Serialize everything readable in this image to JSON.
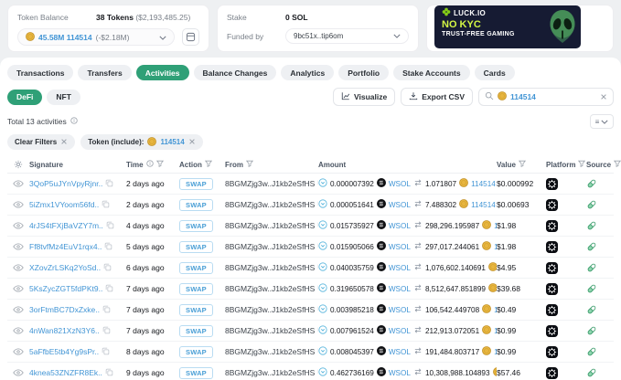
{
  "account": {
    "token_balance_label": "Token Balance",
    "token_count": "38 Tokens",
    "token_total": "($2,193,485.25)",
    "token_select_value": "45.58M 114514",
    "token_select_change": "(-$2.18M)",
    "stake_label": "Stake",
    "stake_value": "0 SOL",
    "funded_by_label": "Funded by",
    "funded_by_value": "9bc51x..tip6om"
  },
  "ad": {
    "brand": "LUCK.IO",
    "headline": "NO KYC",
    "subline": "TRUST-FREE GAMING"
  },
  "tabs": [
    {
      "label": "Transactions"
    },
    {
      "label": "Transfers"
    },
    {
      "label": "Activities",
      "active": true
    },
    {
      "label": "Balance Changes"
    },
    {
      "label": "Analytics"
    },
    {
      "label": "Portfolio"
    },
    {
      "label": "Stake Accounts"
    },
    {
      "label": "Cards"
    }
  ],
  "subtabs": [
    {
      "label": "DeFi",
      "active": true
    },
    {
      "label": "NFT"
    }
  ],
  "toolbar": {
    "visualize_label": "Visualize",
    "export_label": "Export CSV",
    "search_value": "114514"
  },
  "summary_total": "Total 13 activities",
  "filters": {
    "clear_label": "Clear Filters",
    "token_chip_label": "Token (include):",
    "token_chip_value": "114514"
  },
  "table": {
    "columns": [
      {
        "label": "Signature"
      },
      {
        "label": "Time",
        "info": true,
        "filter": true
      },
      {
        "label": "Action",
        "filter": true
      },
      {
        "label": "From",
        "filter": true
      },
      {
        "label": "Amount"
      },
      {
        "label": "Value",
        "filter": true
      },
      {
        "label": "Platform",
        "filter": true
      },
      {
        "label": "Source",
        "filter": true
      }
    ],
    "rows": [
      {
        "signature": "3QoP5uJYnVpyRjnr..",
        "time": "2 days ago",
        "action": "SWAP",
        "from": "8BGMZjg3w..J1kb2eSfHS",
        "amount_in": "0.000007392",
        "token_in": "WSOL",
        "amount_out": "1.071807",
        "token_out": "114514",
        "value": "$0.000992"
      },
      {
        "signature": "5iZmx1VYoom56fd..",
        "time": "2 days ago",
        "action": "SWAP",
        "from": "8BGMZjg3w..J1kb2eSfHS",
        "amount_in": "0.000051641",
        "token_in": "WSOL",
        "amount_out": "7.488302",
        "token_out": "114514",
        "value": "$0.00693"
      },
      {
        "signature": "4rJS4tFXjBaVZY7m..",
        "time": "4 days ago",
        "action": "SWAP",
        "from": "8BGMZjg3w..J1kb2eSfHS",
        "amount_in": "0.015735927",
        "token_in": "WSOL",
        "amount_out": "298,296.195987",
        "token_out": "114514",
        "value": "$1.98"
      },
      {
        "signature": "Ff8tvfMz4EuV1rqx4..",
        "time": "5 days ago",
        "action": "SWAP",
        "from": "8BGMZjg3w..J1kb2eSfHS",
        "amount_in": "0.015905066",
        "token_in": "WSOL",
        "amount_out": "297,017.244061",
        "token_out": "114514",
        "value": "$1.98"
      },
      {
        "signature": "XZovZrLSKq2YoSd..",
        "time": "6 days ago",
        "action": "SWAP",
        "from": "8BGMZjg3w..J1kb2eSfHS",
        "amount_in": "0.040035759",
        "token_in": "WSOL",
        "amount_out": "1,076,602.140691",
        "token_out": "114514",
        "value": "$4.95"
      },
      {
        "signature": "5KsZycZGT5fdPKt9..",
        "time": "7 days ago",
        "action": "SWAP",
        "from": "8BGMZjg3w..J1kb2eSfHS",
        "amount_in": "0.319650578",
        "token_in": "WSOL",
        "amount_out": "8,512,647.851899",
        "token_out": "114514",
        "value": "$39.68"
      },
      {
        "signature": "3orFtmBC7DxZxke..",
        "time": "7 days ago",
        "action": "SWAP",
        "from": "8BGMZjg3w..J1kb2eSfHS",
        "amount_in": "0.003985218",
        "token_in": "WSOL",
        "amount_out": "106,542.449708",
        "token_out": "114514",
        "value": "$0.49"
      },
      {
        "signature": "4nWan821XzN3Y6..",
        "time": "7 days ago",
        "action": "SWAP",
        "from": "8BGMZjg3w..J1kb2eSfHS",
        "amount_in": "0.007961524",
        "token_in": "WSOL",
        "amount_out": "212,913.072051",
        "token_out": "114514",
        "value": "$0.99"
      },
      {
        "signature": "5aFfbE5tb4Yg9sPr..",
        "time": "8 days ago",
        "action": "SWAP",
        "from": "8BGMZjg3w..J1kb2eSfHS",
        "amount_in": "0.008045397",
        "token_in": "WSOL",
        "amount_out": "191,484.803717",
        "token_out": "114514",
        "value": "$0.99"
      },
      {
        "signature": "4knea53ZNZFR8Ek..",
        "time": "9 days ago",
        "action": "SWAP",
        "from": "8BGMZjg3w..J1kb2eSfHS",
        "amount_in": "0.462736169",
        "token_in": "WSOL",
        "amount_out": "10,308,988.104893",
        "token_out": "114514",
        "value": "$57.46"
      }
    ]
  },
  "colors": {
    "accent_green": "#2fa077",
    "link_blue": "#4295d5",
    "ad_bg": "#161b33",
    "ad_yellow": "#d3f544"
  }
}
